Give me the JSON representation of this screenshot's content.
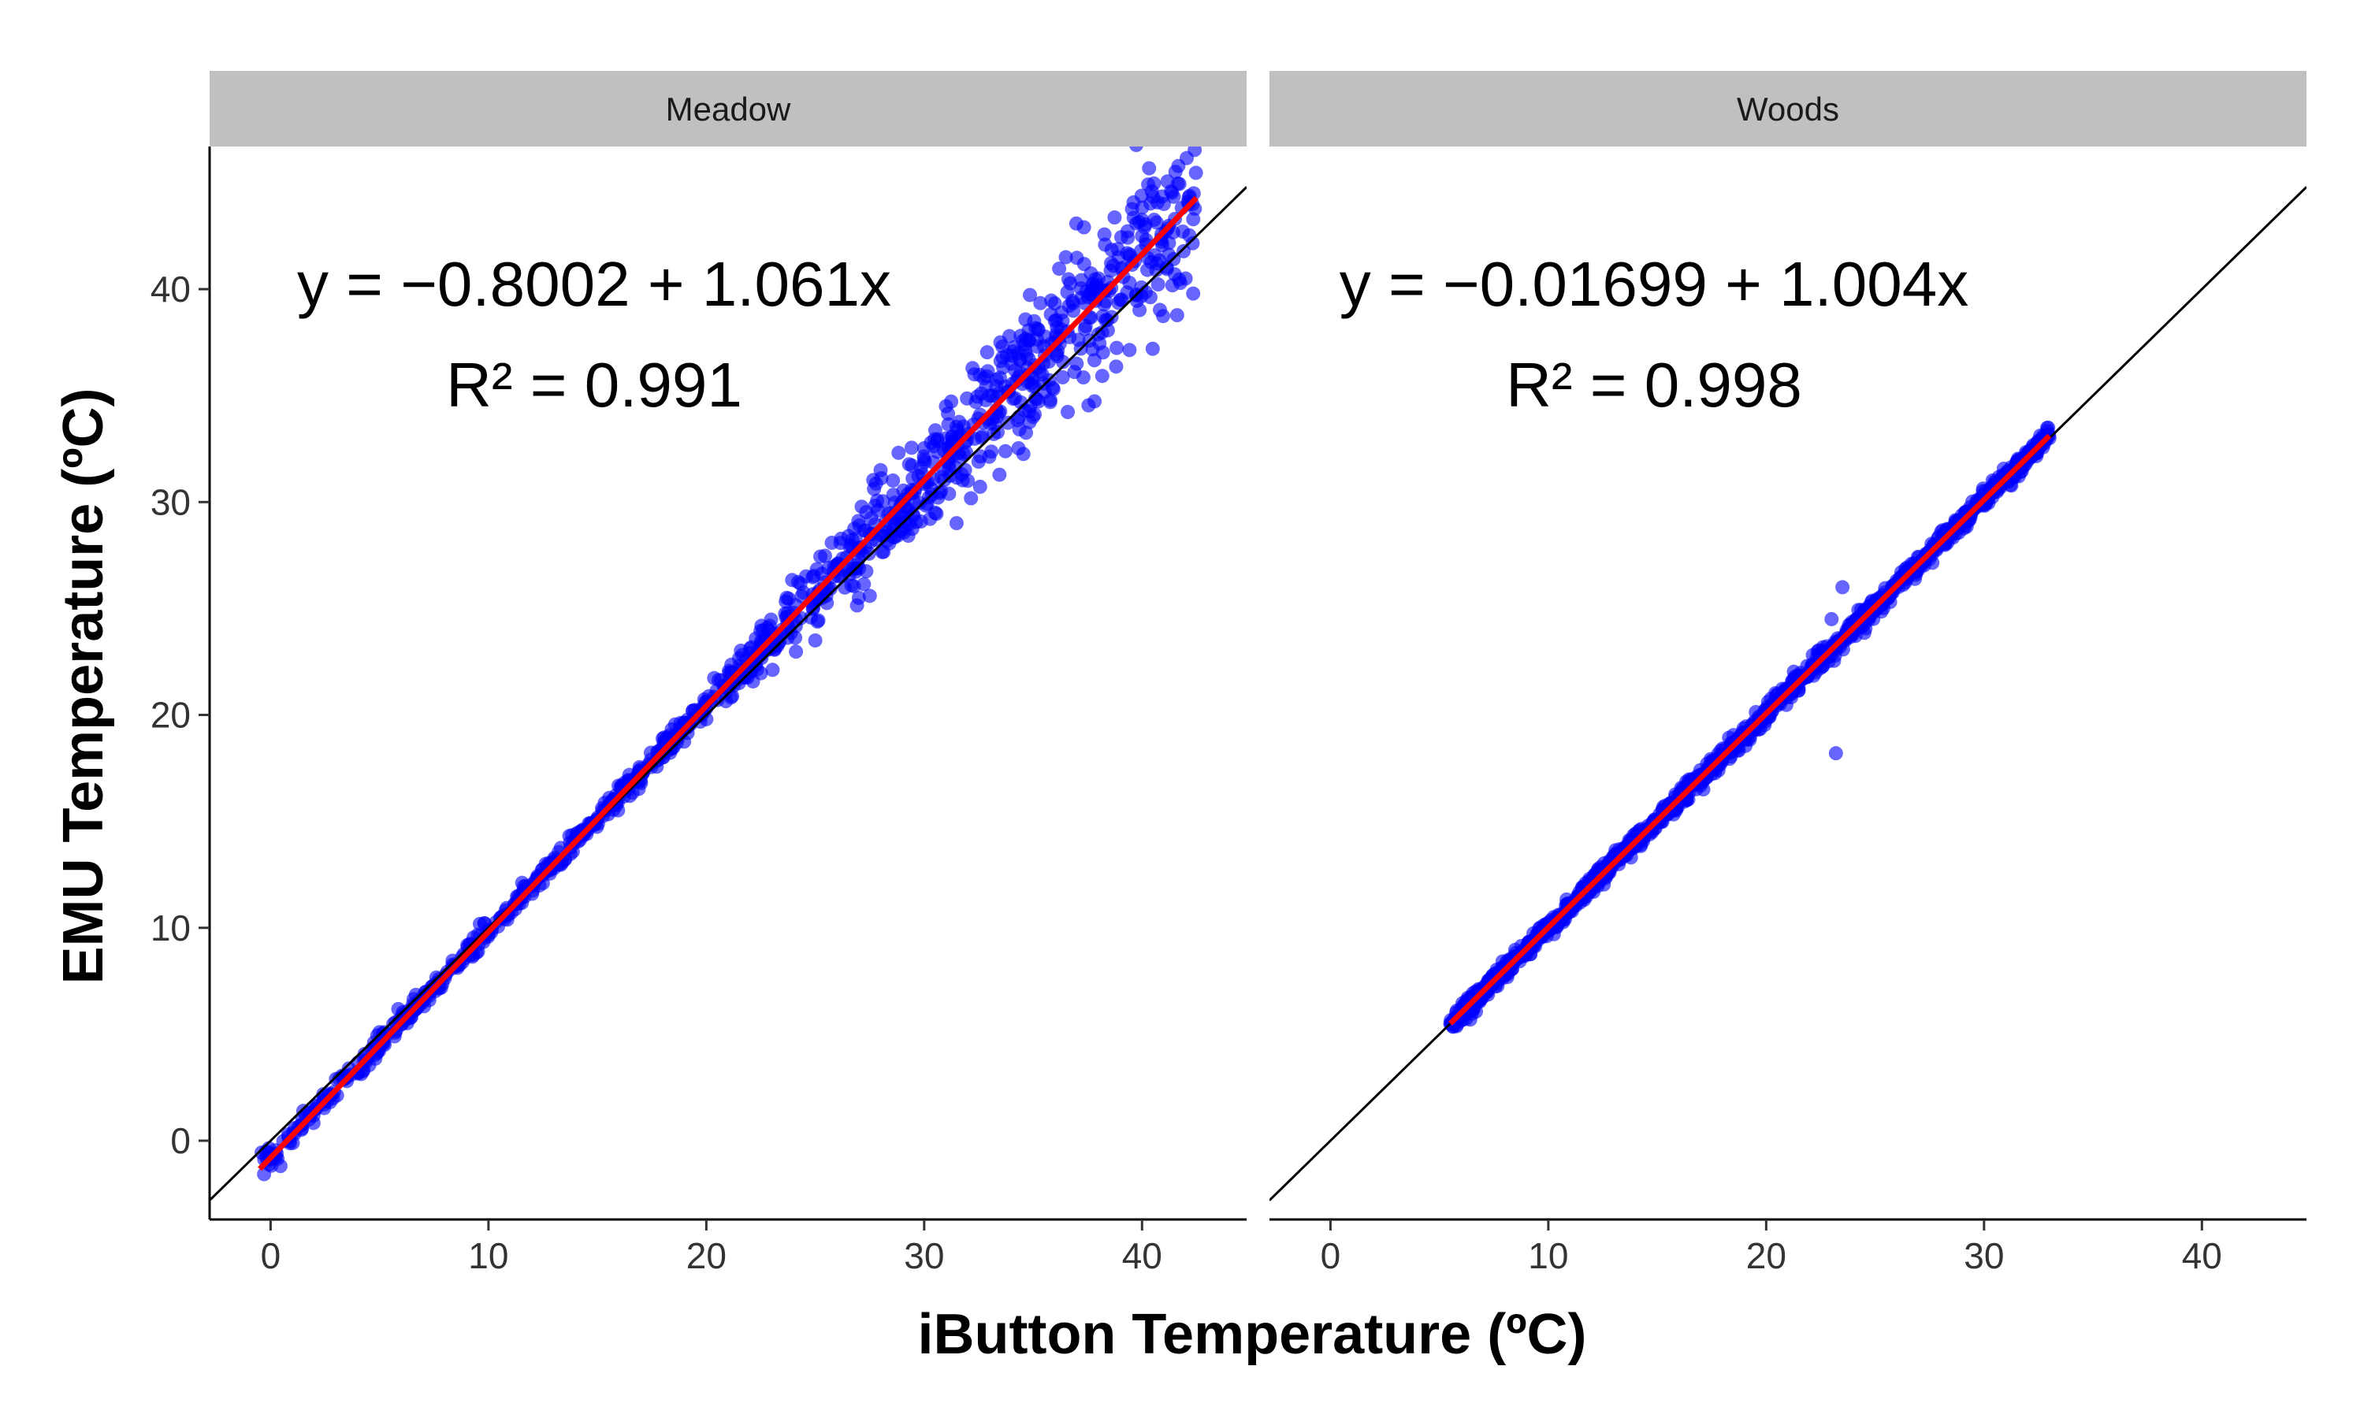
{
  "chart_data": {
    "type": "scatter",
    "xlabel": "iButton Temperature (ºC)",
    "ylabel": "EMU Temperature (ºC)",
    "xlim": [
      -2.8,
      44.8
    ],
    "ylim": [
      -3.7,
      46.7
    ],
    "x_ticks": [
      0,
      10,
      20,
      30,
      40
    ],
    "y_ticks": [
      0,
      10,
      20,
      30,
      40
    ],
    "identity_line": true,
    "grid": false,
    "colors": {
      "points": "#0000ff",
      "fit_line": "#ff0000",
      "identity_line": "#000000",
      "strip": "#c0c0c0"
    },
    "panels": [
      {
        "name": "Meadow",
        "equation": "y = −0.8002 + 1.061x",
        "r_squared": "R² = 0.991",
        "intercept": -0.8002,
        "slope": 1.061,
        "fit_x_range": [
          -0.5,
          42.5
        ],
        "point_samples": [
          [
            -0.2,
            -0.5
          ],
          [
            1.5,
            1.4
          ],
          [
            3.0,
            2.9
          ],
          [
            5.0,
            5.1
          ],
          [
            7.0,
            6.8
          ],
          [
            8.5,
            8.3
          ],
          [
            10.0,
            9.9
          ],
          [
            12.0,
            11.6
          ],
          [
            13.5,
            13.2
          ],
          [
            15.0,
            15.1
          ],
          [
            17.0,
            16.8
          ],
          [
            18.5,
            19.0
          ],
          [
            20.0,
            19.8
          ],
          [
            21.5,
            21.5
          ],
          [
            23.0,
            23.5
          ],
          [
            24.0,
            24.8
          ],
          [
            25.0,
            25.5
          ],
          [
            26.0,
            27.0
          ],
          [
            27.5,
            28.5
          ],
          [
            28.0,
            31.5
          ],
          [
            29.0,
            30.0
          ],
          [
            30.0,
            32.0
          ],
          [
            31.0,
            34.5
          ],
          [
            32.0,
            31.0
          ],
          [
            33.0,
            35.0
          ],
          [
            34.0,
            36.5
          ],
          [
            35.0,
            34.0
          ],
          [
            36.0,
            38.5
          ],
          [
            37.0,
            36.5
          ],
          [
            38.0,
            40.5
          ],
          [
            39.0,
            39.5
          ],
          [
            40.0,
            42.5
          ],
          [
            41.0,
            44.0
          ],
          [
            42.0,
            40.5
          ],
          [
            25.0,
            23.5
          ],
          [
            30.5,
            29.5
          ],
          [
            22.0,
            22.0
          ],
          [
            36.5,
            41.5
          ],
          [
            33.5,
            37.5
          ],
          [
            27.0,
            25.5
          ]
        ]
      },
      {
        "name": "Woods",
        "equation": "y = −0.01699 + 1.004x",
        "r_squared": "R² = 0.998",
        "intercept": -0.01699,
        "slope": 1.004,
        "fit_x_range": [
          5.5,
          33.0
        ],
        "point_samples": [
          [
            5.5,
            5.5
          ],
          [
            7.0,
            7.0
          ],
          [
            8.5,
            8.5
          ],
          [
            10.0,
            10.0
          ],
          [
            12.0,
            12.0
          ],
          [
            14.0,
            14.0
          ],
          [
            16.0,
            16.0
          ],
          [
            18.0,
            18.0
          ],
          [
            20.0,
            20.1
          ],
          [
            22.0,
            22.0
          ],
          [
            23.0,
            24.5
          ],
          [
            23.5,
            26.0
          ],
          [
            23.2,
            18.2
          ],
          [
            25.0,
            25.1
          ],
          [
            27.0,
            27.0
          ],
          [
            29.0,
            29.0
          ],
          [
            31.0,
            31.1
          ],
          [
            33.0,
            33.0
          ]
        ]
      }
    ]
  }
}
